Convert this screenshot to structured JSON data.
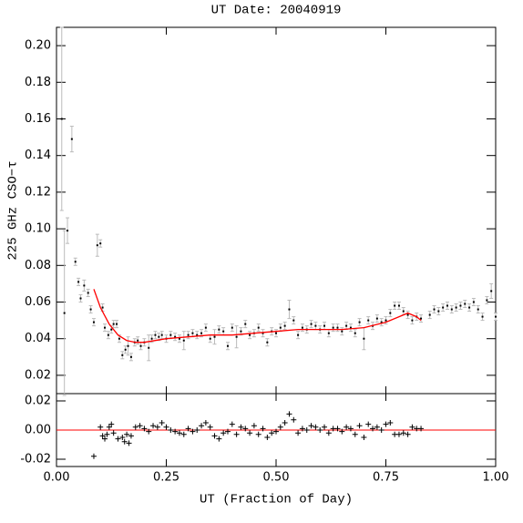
{
  "chart_data": [
    {
      "type": "scatter",
      "title": "UT Date: 20040919",
      "y_label": "225 GHz CSO−τ",
      "color": "#000000",
      "error_color": "#bbbbbb",
      "x": [
        0.012,
        0.018,
        0.025,
        0.035,
        0.043,
        0.05,
        0.055,
        0.063,
        0.072,
        0.078,
        0.085,
        0.093,
        0.1,
        0.105,
        0.11,
        0.118,
        0.125,
        0.13,
        0.137,
        0.143,
        0.15,
        0.157,
        0.163,
        0.17,
        0.178,
        0.185,
        0.192,
        0.2,
        0.21,
        0.217,
        0.225,
        0.233,
        0.24,
        0.25,
        0.26,
        0.27,
        0.28,
        0.29,
        0.3,
        0.31,
        0.32,
        0.33,
        0.34,
        0.35,
        0.36,
        0.37,
        0.38,
        0.39,
        0.4,
        0.41,
        0.42,
        0.43,
        0.44,
        0.45,
        0.46,
        0.47,
        0.48,
        0.49,
        0.5,
        0.51,
        0.52,
        0.53,
        0.54,
        0.55,
        0.56,
        0.57,
        0.58,
        0.59,
        0.6,
        0.61,
        0.62,
        0.63,
        0.64,
        0.65,
        0.66,
        0.67,
        0.68,
        0.69,
        0.7,
        0.71,
        0.72,
        0.73,
        0.74,
        0.75,
        0.76,
        0.77,
        0.78,
        0.79,
        0.8,
        0.81,
        0.82,
        0.83,
        0.85,
        0.86,
        0.87,
        0.88,
        0.89,
        0.9,
        0.91,
        0.92,
        0.93,
        0.94,
        0.95,
        0.96,
        0.97,
        0.98,
        0.99,
        1.0
      ],
      "values": [
        0.16,
        0.054,
        0.099,
        0.149,
        0.082,
        0.071,
        0.062,
        0.069,
        0.065,
        0.056,
        0.049,
        0.091,
        0.092,
        0.057,
        0.046,
        0.042,
        0.045,
        0.048,
        0.048,
        0.04,
        0.031,
        0.034,
        0.036,
        0.03,
        0.038,
        0.039,
        0.036,
        0.038,
        0.035,
        0.04,
        0.042,
        0.041,
        0.042,
        0.04,
        0.042,
        0.041,
        0.04,
        0.039,
        0.042,
        0.043,
        0.042,
        0.043,
        0.046,
        0.04,
        0.041,
        0.045,
        0.044,
        0.036,
        0.046,
        0.041,
        0.044,
        0.048,
        0.042,
        0.043,
        0.046,
        0.043,
        0.038,
        0.044,
        0.043,
        0.046,
        0.047,
        0.056,
        0.05,
        0.042,
        0.046,
        0.045,
        0.048,
        0.047,
        0.045,
        0.047,
        0.043,
        0.046,
        0.046,
        0.044,
        0.047,
        0.046,
        0.043,
        0.049,
        0.04,
        0.05,
        0.047,
        0.051,
        0.049,
        0.05,
        0.054,
        0.058,
        0.058,
        0.055,
        0.053,
        0.05,
        0.052,
        0.051,
        0.053,
        0.056,
        0.055,
        0.057,
        0.058,
        0.056,
        0.057,
        0.058,
        0.059,
        0.057,
        0.06,
        0.056,
        0.052,
        0.061,
        0.066,
        0.052
      ],
      "errors": [
        0.05,
        0.045,
        0.007,
        0.007,
        0.002,
        0.002,
        0.002,
        0.003,
        0.002,
        0.002,
        0.002,
        0.006,
        0.002,
        0.002,
        0.002,
        0.002,
        0.002,
        0.002,
        0.002,
        0.002,
        0.002,
        0.002,
        0.005,
        0.002,
        0.002,
        0.002,
        0.002,
        0.002,
        0.007,
        0.002,
        0.002,
        0.002,
        0.002,
        0.002,
        0.002,
        0.002,
        0.002,
        0.005,
        0.002,
        0.002,
        0.002,
        0.002,
        0.002,
        0.002,
        0.004,
        0.002,
        0.002,
        0.002,
        0.002,
        0.006,
        0.002,
        0.002,
        0.002,
        0.002,
        0.002,
        0.002,
        0.002,
        0.002,
        0.002,
        0.002,
        0.002,
        0.005,
        0.002,
        0.002,
        0.002,
        0.002,
        0.002,
        0.002,
        0.002,
        0.002,
        0.002,
        0.002,
        0.002,
        0.002,
        0.002,
        0.002,
        0.002,
        0.002,
        0.006,
        0.002,
        0.002,
        0.002,
        0.002,
        0.002,
        0.002,
        0.002,
        0.002,
        0.002,
        0.002,
        0.002,
        0.002,
        0.002,
        0.002,
        0.002,
        0.002,
        0.002,
        0.002,
        0.002,
        0.002,
        0.002,
        0.002,
        0.002,
        0.002,
        0.002,
        0.002,
        0.002,
        0.004,
        0.002
      ],
      "fit": {
        "color": "#ff0000",
        "x": [
          0.085,
          0.1,
          0.12,
          0.14,
          0.16,
          0.18,
          0.2,
          0.25,
          0.3,
          0.35,
          0.4,
          0.45,
          0.5,
          0.55,
          0.6,
          0.65,
          0.7,
          0.75,
          0.78,
          0.8,
          0.82,
          0.83
        ],
        "values": [
          0.067,
          0.057,
          0.048,
          0.042,
          0.039,
          0.038,
          0.038,
          0.04,
          0.041,
          0.042,
          0.042,
          0.043,
          0.044,
          0.045,
          0.045,
          0.045,
          0.046,
          0.049,
          0.052,
          0.054,
          0.052,
          0.05
        ]
      },
      "xlim": [
        0,
        1
      ],
      "ylim": [
        0.01,
        0.21
      ],
      "yticks": [
        0.02,
        0.04,
        0.06,
        0.08,
        {
          "value": 0.1,
          "label": "0.10"
        },
        0.12,
        0.14,
        0.16,
        0.18,
        {
          "value": 0.2,
          "label": "0.20"
        }
      ]
    },
    {
      "type": "residual",
      "x_label": "UT (Fraction of Day)",
      "color": "#000000",
      "x": [
        0.085,
        0.1,
        0.105,
        0.11,
        0.115,
        0.12,
        0.125,
        0.13,
        0.14,
        0.15,
        0.155,
        0.16,
        0.165,
        0.17,
        0.18,
        0.19,
        0.2,
        0.21,
        0.22,
        0.23,
        0.24,
        0.25,
        0.26,
        0.27,
        0.28,
        0.29,
        0.3,
        0.31,
        0.32,
        0.33,
        0.34,
        0.35,
        0.36,
        0.37,
        0.38,
        0.39,
        0.4,
        0.41,
        0.42,
        0.43,
        0.44,
        0.45,
        0.46,
        0.47,
        0.48,
        0.49,
        0.5,
        0.51,
        0.52,
        0.53,
        0.54,
        0.55,
        0.56,
        0.57,
        0.58,
        0.59,
        0.6,
        0.61,
        0.62,
        0.63,
        0.64,
        0.65,
        0.66,
        0.67,
        0.68,
        0.69,
        0.7,
        0.71,
        0.72,
        0.73,
        0.74,
        0.75,
        0.76,
        0.77,
        0.78,
        0.79,
        0.8,
        0.81,
        0.82,
        0.83
      ],
      "values": [
        -0.018,
        0.002,
        -0.004,
        -0.006,
        -0.003,
        0.002,
        0.004,
        -0.002,
        -0.006,
        -0.005,
        -0.008,
        -0.003,
        -0.009,
        -0.004,
        0.002,
        0.003,
        0.001,
        -0.001,
        0.003,
        0.002,
        0.005,
        0.002,
        0,
        -0.001,
        -0.002,
        -0.003,
        0.001,
        -0.001,
        0,
        0.003,
        0.005,
        0.002,
        -0.004,
        -0.006,
        -0.002,
        -0.001,
        0.004,
        -0.003,
        0.002,
        0.001,
        -0.002,
        0.003,
        -0.003,
        0.001,
        -0.005,
        -0.002,
        -0.001,
        0.002,
        0.005,
        0.011,
        0.007,
        -0.002,
        0.001,
        0,
        0.003,
        0.002,
        0,
        0.002,
        -0.002,
        0.001,
        0.001,
        -0.001,
        0.002,
        0.001,
        -0.003,
        0.003,
        -0.005,
        0.004,
        0.001,
        0.002,
        0,
        0.004,
        0.005,
        -0.003,
        -0.003,
        -0.002,
        -0.003,
        0.002,
        0.001,
        0.001
      ],
      "hline": 0,
      "hline_color": "#ff0000",
      "xlim": [
        0,
        1
      ],
      "ylim": [
        -0.025,
        0.025
      ],
      "xticks": [
        {
          "value": 0,
          "label": "0.00"
        },
        0.25,
        {
          "value": 0.5,
          "label": "0.50"
        },
        0.75,
        {
          "value": 1,
          "label": "1.00"
        }
      ],
      "yticks": [
        -0.02,
        {
          "value": 0,
          "label": "0.00"
        },
        0.02
      ]
    }
  ]
}
